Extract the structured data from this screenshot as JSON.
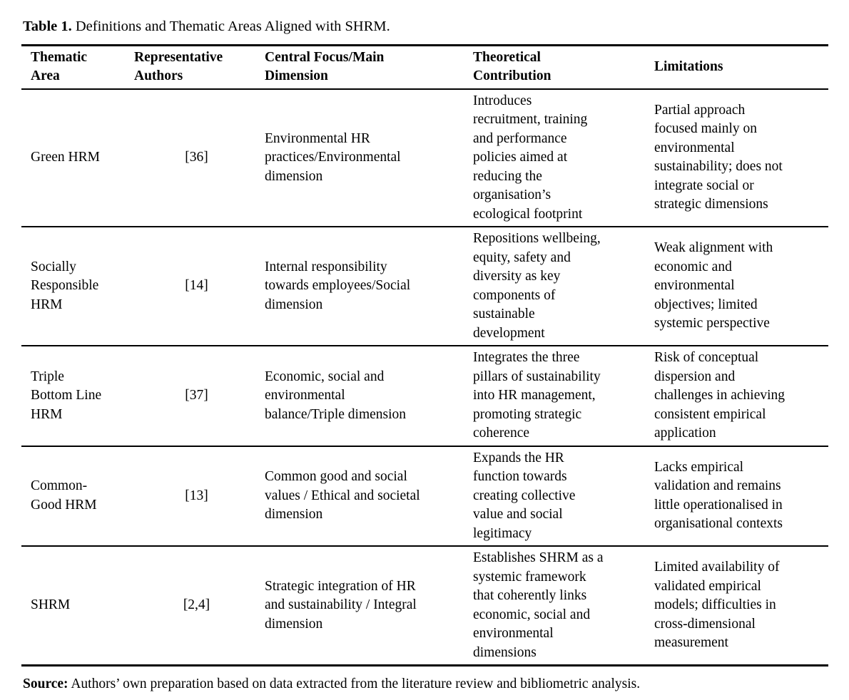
{
  "page": {
    "background_color": "#ffffff",
    "text_color": "#000000"
  },
  "title": {
    "bold": "Table 1.",
    "rest": " Definitions and Thematic Areas Aligned with SHRM."
  },
  "table": {
    "columns": [
      {
        "id": "thematic_area",
        "label": "Thematic\nArea"
      },
      {
        "id": "authors",
        "label": "Representative\nAuthors"
      },
      {
        "id": "central_focus",
        "label": "Central Focus/Main\nDimension"
      },
      {
        "id": "contribution",
        "label": "Theoretical\nContribution"
      },
      {
        "id": "limitations",
        "label": "Limitations"
      }
    ],
    "rows": [
      {
        "thematic_area": "Green HRM",
        "authors": "[36]",
        "central_focus": "Environmental HR\npractices/Environmental\ndimension",
        "contribution": "Introduces\nrecruitment, training\nand performance\npolicies aimed at\nreducing the\norganisation’s\necological footprint",
        "limitations": "Partial approach\nfocused mainly on\nenvironmental\nsustainability; does not\nintegrate social or\nstrategic dimensions"
      },
      {
        "thematic_area": "Socially\nResponsible\nHRM",
        "authors": "[14]",
        "central_focus": "Internal responsibility\ntowards employees/Social\ndimension",
        "contribution": "Repositions wellbeing,\nequity, safety and\ndiversity as key\ncomponents of\nsustainable\ndevelopment",
        "limitations": "Weak alignment with\neconomic and\nenvironmental\nobjectives; limited\nsystemic perspective"
      },
      {
        "thematic_area": "Triple\nBottom Line\nHRM",
        "authors": "[37]",
        "central_focus": "Economic, social and\nenvironmental\nbalance/Triple dimension",
        "contribution": "Integrates the three\npillars of sustainability\ninto HR management,\npromoting strategic\ncoherence",
        "limitations": "Risk of conceptual\ndispersion and\nchallenges in achieving\nconsistent empirical\napplication"
      },
      {
        "thematic_area": "Common-\nGood HRM",
        "authors": "[13]",
        "central_focus": "Common good and social\nvalues / Ethical and societal\ndimension",
        "contribution": "Expands the HR\nfunction towards\ncreating collective\nvalue and social\nlegitimacy",
        "limitations": "Lacks empirical\nvalidation and remains\nlittle operationalised in\norganisational contexts"
      },
      {
        "thematic_area": "SHRM",
        "authors": "[2,4]",
        "central_focus": "Strategic integration of HR\nand sustainability / Integral\ndimension",
        "contribution": "Establishes SHRM as a\nsystemic framework\nthat coherently links\neconomic, social and\nenvironmental\ndimensions",
        "limitations": "Limited availability of\nvalidated empirical\nmodels; difficulties in\ncross-dimensional\nmeasurement"
      }
    ]
  },
  "footer": {
    "bold": "Source:",
    "rest": " Authors’ own preparation based on data extracted from the literature review and bibliometric analysis."
  }
}
